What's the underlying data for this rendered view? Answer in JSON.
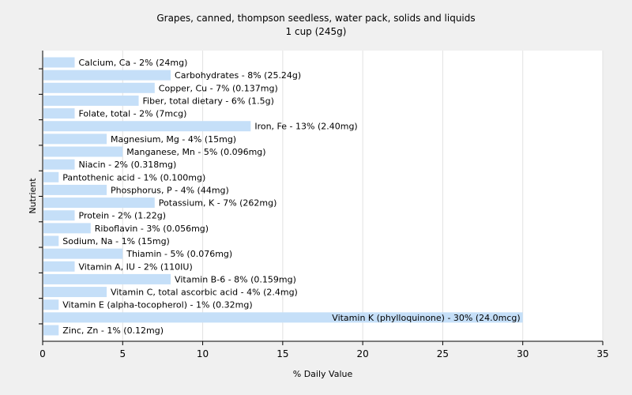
{
  "chart_data": {
    "type": "bar",
    "orientation": "horizontal",
    "title": "Grapes, canned, thompson seedless, water pack, solids and liquids",
    "subtitle": "1 cup (245g)",
    "xlabel": "% Daily Value",
    "ylabel": "Nutrient",
    "xlim": [
      0,
      35
    ],
    "xticks": [
      0,
      5,
      10,
      15,
      20,
      25,
      30,
      35
    ],
    "grid": true,
    "bar_color": "#c5dff8",
    "categories": [
      "Calcium, Ca",
      "Carbohydrates",
      "Copper, Cu",
      "Fiber, total dietary",
      "Folate, total",
      "Iron, Fe",
      "Magnesium, Mg",
      "Manganese, Mn",
      "Niacin",
      "Pantothenic acid",
      "Phosphorus, P",
      "Potassium, K",
      "Protein",
      "Riboflavin",
      "Sodium, Na",
      "Thiamin",
      "Vitamin A, IU",
      "Vitamin B-6",
      "Vitamin C, total ascorbic acid",
      "Vitamin E (alpha-tocopherol)",
      "Vitamin K (phylloquinone)",
      "Zinc, Zn"
    ],
    "values": [
      2,
      8,
      7,
      6,
      2,
      13,
      4,
      5,
      2,
      1,
      4,
      7,
      2,
      3,
      1,
      5,
      2,
      8,
      4,
      1,
      30,
      1
    ],
    "labels": [
      "Calcium, Ca - 2% (24mg)",
      "Carbohydrates - 8% (25.24g)",
      "Copper, Cu - 7% (0.137mg)",
      "Fiber, total dietary - 6% (1.5g)",
      "Folate, total - 2% (7mcg)",
      "Iron, Fe - 13% (2.40mg)",
      "Magnesium, Mg - 4% (15mg)",
      "Manganese, Mn - 5% (0.096mg)",
      "Niacin - 2% (0.318mg)",
      "Pantothenic acid - 1% (0.100mg)",
      "Phosphorus, P - 4% (44mg)",
      "Potassium, K - 7% (262mg)",
      "Protein - 2% (1.22g)",
      "Riboflavin - 3% (0.056mg)",
      "Sodium, Na - 1% (15mg)",
      "Thiamin - 5% (0.076mg)",
      "Vitamin A, IU - 2% (110IU)",
      "Vitamin B-6 - 8% (0.159mg)",
      "Vitamin C, total ascorbic acid - 4% (2.4mg)",
      "Vitamin E (alpha-tocopherol) - 1% (0.32mg)",
      "Vitamin K (phylloquinone) - 30% (24.0mcg)",
      "Zinc, Zn - 1% (0.12mg)"
    ]
  }
}
